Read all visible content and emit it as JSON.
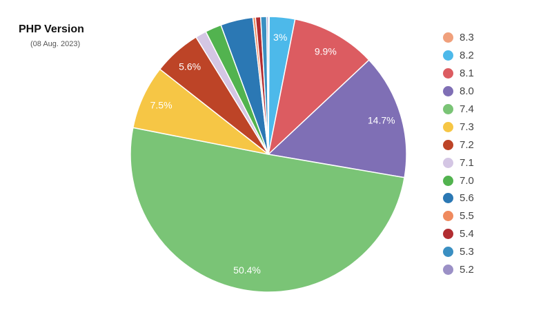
{
  "title": "PHP Version",
  "subtitle": "(08 Aug. 2023)",
  "chart_data": {
    "type": "pie",
    "title": "PHP Version",
    "subtitle": "(08 Aug. 2023)",
    "legend_position": "right",
    "categories": [
      "8.3",
      "8.2",
      "8.1",
      "8.0",
      "7.4",
      "7.3",
      "7.2",
      "7.1",
      "7.0",
      "5.6",
      "5.5",
      "5.4",
      "5.3",
      "5.2"
    ],
    "values": [
      0.1,
      3.0,
      9.9,
      14.7,
      50.4,
      7.5,
      5.6,
      1.3,
      1.9,
      3.8,
      0.3,
      0.6,
      0.7,
      0.2
    ],
    "labels": [
      "",
      "3%",
      "9.9%",
      "14.7%",
      "50.4%",
      "7.5%",
      "5.6%",
      "",
      "",
      "",
      "",
      "",
      "",
      ""
    ],
    "colors": [
      "#f0a07c",
      "#4db9ea",
      "#dc5c61",
      "#7f6fb5",
      "#7ac476",
      "#f6c645",
      "#bd4427",
      "#d4c6e4",
      "#52b34f",
      "#2b78b4",
      "#ef8a5e",
      "#b22d31",
      "#3a8fc2",
      "#9b90c6"
    ]
  }
}
